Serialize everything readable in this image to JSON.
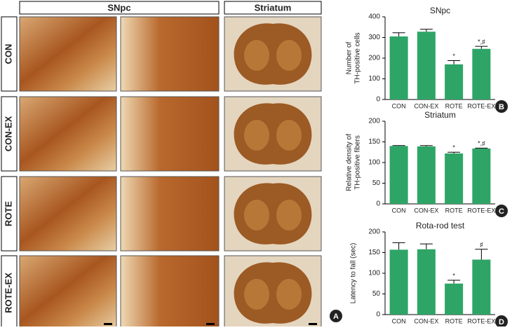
{
  "figure": {
    "column_headers": [
      "SNpc",
      "Striatum"
    ],
    "row_labels": [
      "CON",
      "CON-EX",
      "ROTE",
      "ROTE-EX"
    ],
    "panel_label": "A"
  },
  "chart_data": [
    {
      "type": "bar",
      "title": "SNpc",
      "panel_label": "B",
      "y_label": [
        "Number of",
        "TH-positive cells"
      ],
      "categories": [
        "CON",
        "CON-EX",
        "ROTE",
        "ROTE-EX"
      ],
      "values": [
        305,
        328,
        170,
        245
      ],
      "errors": [
        18,
        12,
        18,
        12
      ],
      "markers": [
        null,
        null,
        "*",
        "*,♯"
      ],
      "color": "#2ea566",
      "ylim": [
        0,
        400
      ],
      "yticks": [
        0,
        100,
        200,
        300,
        400
      ]
    },
    {
      "type": "bar",
      "title": "Striatum",
      "panel_label": "C",
      "y_label": [
        "Relative density of",
        "TH-positive fibers"
      ],
      "categories": [
        "CON",
        "CON-EX",
        "ROTE",
        "ROTE-EX"
      ],
      "values": [
        140,
        139,
        122,
        134
      ],
      "errors": [
        1,
        2,
        3,
        1
      ],
      "markers": [
        null,
        null,
        "*",
        "*,♯"
      ],
      "color": "#2ea566",
      "ylim": [
        0,
        200
      ],
      "yticks": [
        0,
        50,
        100,
        150,
        200
      ]
    },
    {
      "type": "bar",
      "title": "Rota-rod test",
      "panel_label": "D",
      "y_label": [
        "Latency to fall (sec)"
      ],
      "categories": [
        "CON",
        "CON-EX",
        "ROTE",
        "ROTE-EX"
      ],
      "values": [
        157,
        158,
        75,
        133
      ],
      "errors": [
        17,
        13,
        8,
        25
      ],
      "markers": [
        null,
        null,
        "*",
        "♯"
      ],
      "color": "#2ea566",
      "ylim": [
        0,
        200
      ],
      "yticks": [
        0,
        50,
        100,
        150,
        200
      ]
    }
  ]
}
